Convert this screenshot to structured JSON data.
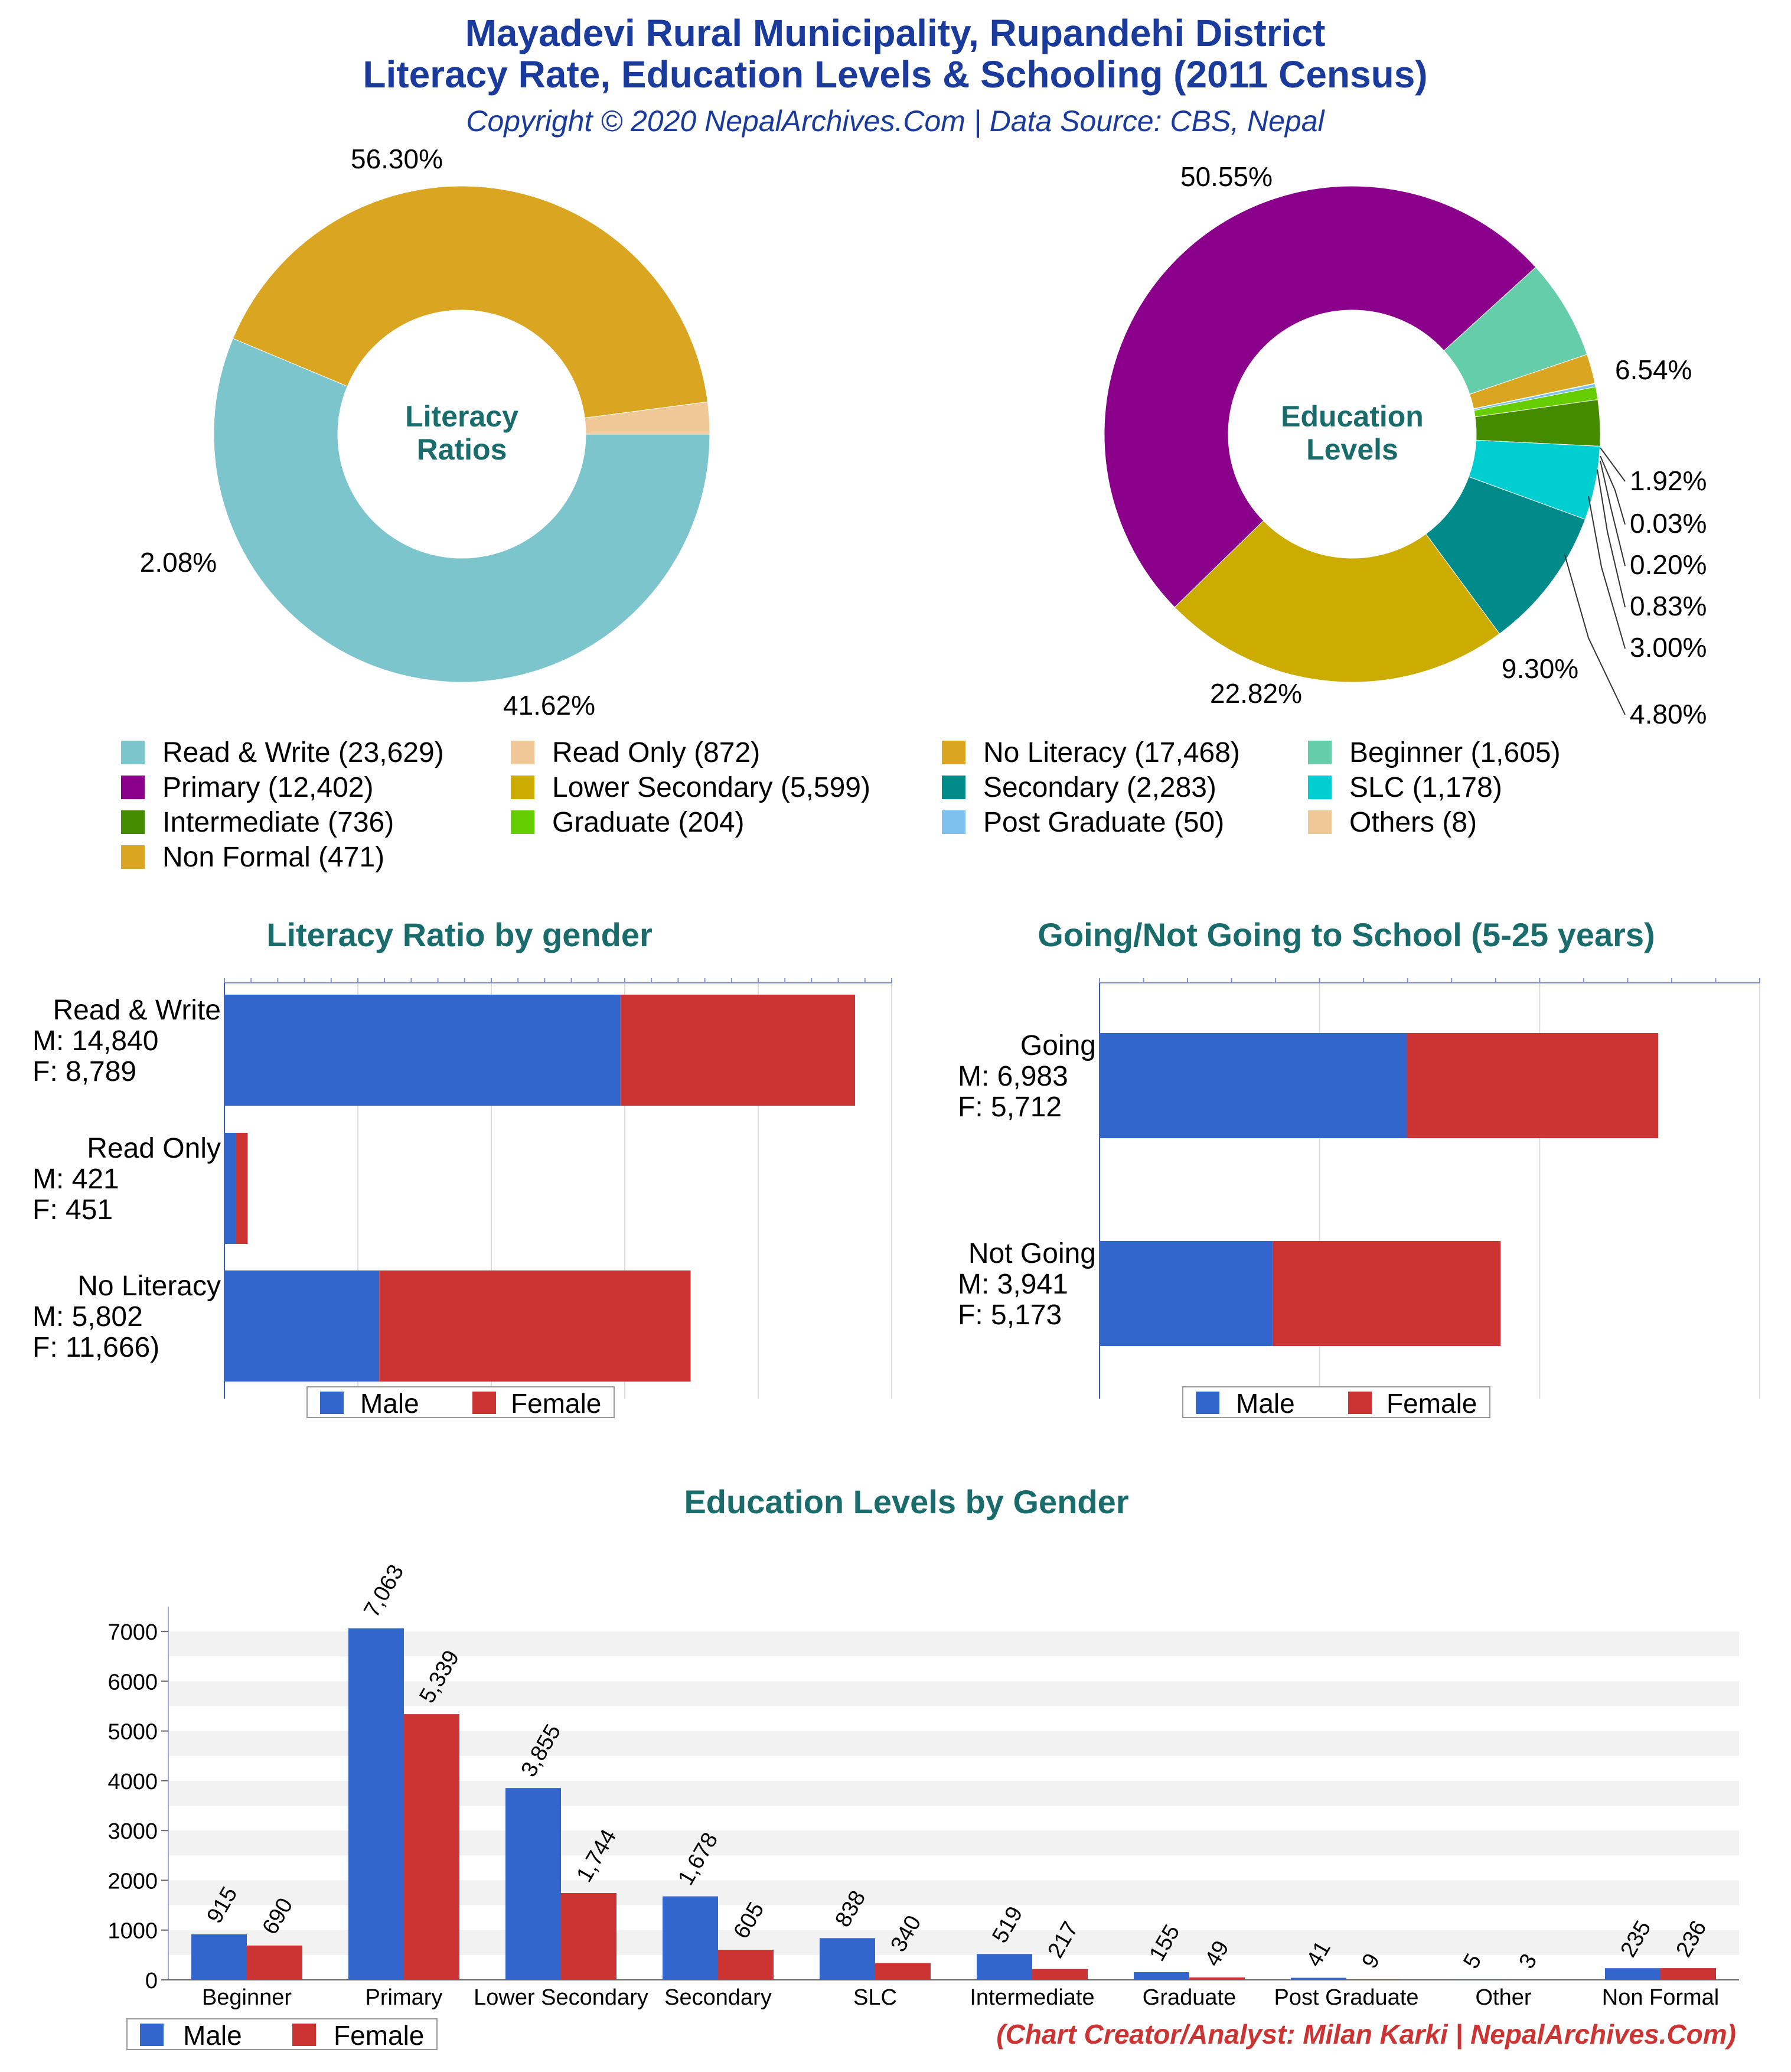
{
  "header": {
    "title_line1": "Mayadevi Rural Municipality, Rupandehi District",
    "title_line2": "Literacy Rate, Education Levels & Schooling (2011 Census)",
    "subtitle": "Copyright © 2020 NepalArchives.Com | Data Source: CBS, Nepal"
  },
  "credit": "(Chart Creator/Analyst: Milan Karki | NepalArchives.Com)",
  "colors": {
    "male": "#3366cc",
    "female": "#cc3333",
    "read_write": "#7cc5cc",
    "read_only": "#f0c898",
    "no_literacy": "#daa520",
    "beginner": "#66cdaa",
    "primary": "#8b008b",
    "lower_secondary": "#ccac00",
    "secondary": "#008b8b",
    "slc": "#00ced1",
    "intermediate": "#458b00",
    "graduate": "#66cd00",
    "post_graduate": "#7ec0ee",
    "others": "#f0c898",
    "non_formal": "#daa520"
  },
  "legend": [
    {
      "label": "Read & Write (23,629)",
      "color": "#7cc5cc"
    },
    {
      "label": "Read Only (872)",
      "color": "#f0c898"
    },
    {
      "label": "No Literacy (17,468)",
      "color": "#daa520"
    },
    {
      "label": "Beginner (1,605)",
      "color": "#66cdaa"
    },
    {
      "label": "Primary (12,402)",
      "color": "#8b008b"
    },
    {
      "label": "Lower Secondary (5,599)",
      "color": "#ccac00"
    },
    {
      "label": "Secondary (2,283)",
      "color": "#008b8b"
    },
    {
      "label": "SLC (1,178)",
      "color": "#00ced1"
    },
    {
      "label": "Intermediate (736)",
      "color": "#458b00"
    },
    {
      "label": "Graduate (204)",
      "color": "#66cd00"
    },
    {
      "label": "Post Graduate (50)",
      "color": "#7ec0ee"
    },
    {
      "label": "Others (8)",
      "color": "#f0c898"
    },
    {
      "label": "Non Formal (471)",
      "color": "#daa520"
    }
  ],
  "chart_data": [
    {
      "type": "pie",
      "title": "Literacy Ratios",
      "slices": [
        {
          "name": "Read & Write",
          "value": 23629,
          "pct_label": "56.30%",
          "color": "#7cc5cc"
        },
        {
          "name": "No Literacy",
          "value": 17468,
          "pct_label": "41.62%",
          "color": "#daa520"
        },
        {
          "name": "Read Only",
          "value": 872,
          "pct_label": "2.08%",
          "color": "#f0c898"
        }
      ]
    },
    {
      "type": "pie",
      "title": "Education Levels",
      "slices": [
        {
          "name": "Beginner",
          "value": 1605,
          "pct_label": "6.54%",
          "color": "#66cdaa"
        },
        {
          "name": "Non Formal",
          "value": 471,
          "pct_label": "1.92%",
          "color": "#daa520"
        },
        {
          "name": "Others",
          "value": 8,
          "pct_label": "0.03%",
          "color": "#f0c898"
        },
        {
          "name": "Post Graduate",
          "value": 50,
          "pct_label": "0.20%",
          "color": "#7ec0ee"
        },
        {
          "name": "Graduate",
          "value": 204,
          "pct_label": "0.83%",
          "color": "#66cd00"
        },
        {
          "name": "Intermediate",
          "value": 736,
          "pct_label": "3.00%",
          "color": "#458b00"
        },
        {
          "name": "SLC",
          "value": 1178,
          "pct_label": "4.80%",
          "color": "#00ced1"
        },
        {
          "name": "Secondary",
          "value": 2283,
          "pct_label": "9.30%",
          "color": "#008b8b"
        },
        {
          "name": "Lower Secondary",
          "value": 5599,
          "pct_label": "22.82%",
          "color": "#ccac00"
        },
        {
          "name": "Primary",
          "value": 12402,
          "pct_label": "50.55%",
          "color": "#8b008b"
        }
      ]
    },
    {
      "type": "bar",
      "title": "Literacy Ratio by gender",
      "orientation": "horizontal",
      "stacked": true,
      "categories": [
        "Read & Write",
        "Read Only",
        "No Literacy"
      ],
      "category_labels": [
        [
          "Read & Write",
          "M: 14,840",
          "F: 8,789"
        ],
        [
          "Read Only",
          "M: 421",
          "F: 451"
        ],
        [
          "No Literacy",
          "M: 5,802",
          "F: 11,666)"
        ]
      ],
      "series": [
        {
          "name": "Male",
          "values": [
            14840,
            421,
            5802
          ]
        },
        {
          "name": "Female",
          "values": [
            8789,
            451,
            11666
          ]
        }
      ],
      "xlim": [
        0,
        25000
      ],
      "grid": true,
      "legend": "bottom"
    },
    {
      "type": "bar",
      "title": "Going/Not Going to School (5-25 years)",
      "orientation": "horizontal",
      "stacked": true,
      "categories": [
        "Going",
        "Not Going"
      ],
      "category_labels": [
        [
          "Going",
          "M: 6,983",
          "F: 5,712"
        ],
        [
          "Not Going",
          "M: 3,941",
          "F: 5,173"
        ]
      ],
      "series": [
        {
          "name": "Male",
          "values": [
            6983,
            3941
          ]
        },
        {
          "name": "Female",
          "values": [
            5712,
            5173
          ]
        }
      ],
      "xlim": [
        0,
        15000
      ],
      "grid": true,
      "legend": "bottom"
    },
    {
      "type": "bar",
      "title": "Education Levels by Gender",
      "orientation": "vertical",
      "categories": [
        "Beginner",
        "Primary",
        "Lower Secondary",
        "Secondary",
        "SLC",
        "Intermediate",
        "Graduate",
        "Post Graduate",
        "Other",
        "Non Formal"
      ],
      "series": [
        {
          "name": "Male",
          "values": [
            915,
            7063,
            3855,
            1678,
            838,
            519,
            155,
            41,
            5,
            235
          ],
          "labels": [
            "915",
            "7,063",
            "3,855",
            "1,678",
            "838",
            "519",
            "155",
            "41",
            "5",
            "235"
          ]
        },
        {
          "name": "Female",
          "values": [
            690,
            5339,
            1744,
            605,
            340,
            217,
            49,
            9,
            3,
            236
          ],
          "labels": [
            "690",
            "5,339",
            "1,744",
            "605",
            "340",
            "217",
            "49",
            "9",
            "3",
            "236"
          ]
        }
      ],
      "ylim": [
        0,
        7000
      ],
      "yticks": [
        "0",
        "1000",
        "2000",
        "3000",
        "4000",
        "5000",
        "6000",
        "7000"
      ],
      "legend": "bottom-left"
    }
  ]
}
